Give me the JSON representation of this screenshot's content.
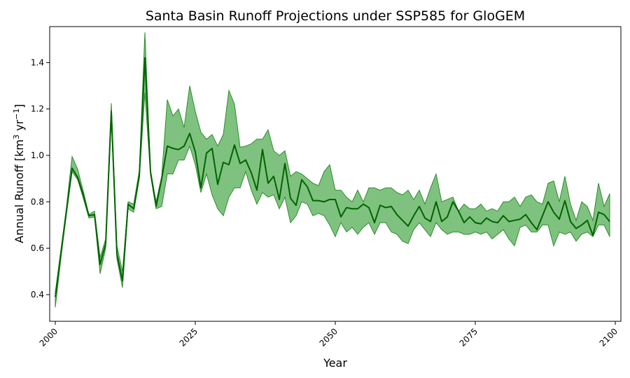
{
  "chart_data": {
    "type": "area",
    "title": "Santa Basin Runoff Projections under SSP585 for GloGEM",
    "xlabel": "Year",
    "ylabel": "Annual Runoff [km",
    "ylabel_sup1": "3",
    "ylabel_mid": " yr",
    "ylabel_sup2": "−1",
    "ylabel_end": "]",
    "xlim": [
      1999,
      2101
    ],
    "ylim": [
      0.285,
      1.555
    ],
    "xticks": [
      2000,
      2025,
      2050,
      2075,
      2100
    ],
    "yticks": [
      0.4,
      0.6,
      0.8,
      1.0,
      1.2,
      1.4
    ],
    "grid": false,
    "colors": {
      "line": "#006400",
      "band_fill": "#4daa4d",
      "band_edge": "#2e8b2e"
    },
    "x": [
      2000,
      2001,
      2002,
      2003,
      2004,
      2005,
      2006,
      2007,
      2008,
      2009,
      2010,
      2011,
      2012,
      2013,
      2014,
      2015,
      2016,
      2017,
      2018,
      2019,
      2020,
      2021,
      2022,
      2023,
      2024,
      2025,
      2026,
      2027,
      2028,
      2029,
      2030,
      2031,
      2032,
      2033,
      2034,
      2035,
      2036,
      2037,
      2038,
      2039,
      2040,
      2041,
      2042,
      2043,
      2044,
      2045,
      2046,
      2047,
      2048,
      2049,
      2050,
      2051,
      2052,
      2053,
      2054,
      2055,
      2056,
      2057,
      2058,
      2059,
      2060,
      2061,
      2062,
      2063,
      2064,
      2065,
      2066,
      2067,
      2068,
      2069,
      2070,
      2071,
      2072,
      2073,
      2074,
      2075,
      2076,
      2077,
      2078,
      2079,
      2080,
      2081,
      2082,
      2083,
      2084,
      2085,
      2086,
      2087,
      2088,
      2089,
      2090,
      2091,
      2092,
      2093,
      2094,
      2095,
      2096,
      2097,
      2098,
      2099
    ],
    "series": [
      {
        "role": "mean",
        "values": [
          0.39,
          0.58,
          0.76,
          0.945,
          0.905,
          0.83,
          0.74,
          0.745,
          0.53,
          0.62,
          1.19,
          0.575,
          0.46,
          0.79,
          0.77,
          0.91,
          1.42,
          0.93,
          0.78,
          0.9,
          1.04,
          1.03,
          1.025,
          1.04,
          1.095,
          1.015,
          0.86,
          1.01,
          1.03,
          0.875,
          0.97,
          0.96,
          1.045,
          0.965,
          0.98,
          0.925,
          0.85,
          1.025,
          0.88,
          0.91,
          0.81,
          0.965,
          0.815,
          0.785,
          0.895,
          0.865,
          0.805,
          0.805,
          0.8,
          0.81,
          0.81,
          0.735,
          0.775,
          0.77,
          0.77,
          0.79,
          0.775,
          0.71,
          0.785,
          0.775,
          0.78,
          0.745,
          0.72,
          0.695,
          0.74,
          0.78,
          0.73,
          0.715,
          0.8,
          0.715,
          0.735,
          0.8,
          0.76,
          0.71,
          0.735,
          0.71,
          0.705,
          0.73,
          0.715,
          0.71,
          0.74,
          0.715,
          0.72,
          0.725,
          0.745,
          0.71,
          0.68,
          0.74,
          0.8,
          0.755,
          0.725,
          0.805,
          0.715,
          0.685,
          0.7,
          0.72,
          0.655,
          0.755,
          0.745,
          0.715
        ]
      },
      {
        "role": "upper",
        "values": [
          0.41,
          0.59,
          0.78,
          0.995,
          0.94,
          0.845,
          0.745,
          0.76,
          0.56,
          0.64,
          1.225,
          0.61,
          0.5,
          0.8,
          0.79,
          0.935,
          1.53,
          0.935,
          0.8,
          0.91,
          1.24,
          1.17,
          1.2,
          1.12,
          1.3,
          1.19,
          1.1,
          1.07,
          1.09,
          1.04,
          1.09,
          1.28,
          1.22,
          1.035,
          1.04,
          1.05,
          1.07,
          1.07,
          1.11,
          1.02,
          1.0,
          1.02,
          0.91,
          0.93,
          0.92,
          0.9,
          0.88,
          0.87,
          0.93,
          0.96,
          0.85,
          0.85,
          0.82,
          0.8,
          0.85,
          0.8,
          0.86,
          0.86,
          0.85,
          0.86,
          0.86,
          0.84,
          0.83,
          0.85,
          0.81,
          0.85,
          0.79,
          0.86,
          0.92,
          0.8,
          0.81,
          0.82,
          0.76,
          0.79,
          0.77,
          0.77,
          0.79,
          0.76,
          0.77,
          0.76,
          0.8,
          0.8,
          0.82,
          0.78,
          0.82,
          0.83,
          0.8,
          0.79,
          0.88,
          0.89,
          0.8,
          0.91,
          0.79,
          0.72,
          0.8,
          0.78,
          0.72,
          0.88,
          0.78,
          0.835
        ]
      },
      {
        "role": "lower",
        "values": [
          0.345,
          0.555,
          0.75,
          0.93,
          0.895,
          0.815,
          0.73,
          0.735,
          0.49,
          0.6,
          1.16,
          0.555,
          0.43,
          0.77,
          0.755,
          0.9,
          1.27,
          0.915,
          0.77,
          0.78,
          0.92,
          0.92,
          0.98,
          0.98,
          1.04,
          0.96,
          0.84,
          0.92,
          0.83,
          0.77,
          0.74,
          0.82,
          0.86,
          0.86,
          0.93,
          0.85,
          0.79,
          0.84,
          0.82,
          0.83,
          0.77,
          0.82,
          0.71,
          0.74,
          0.8,
          0.79,
          0.74,
          0.75,
          0.74,
          0.7,
          0.65,
          0.71,
          0.67,
          0.69,
          0.66,
          0.69,
          0.71,
          0.66,
          0.71,
          0.71,
          0.67,
          0.66,
          0.63,
          0.62,
          0.68,
          0.71,
          0.68,
          0.65,
          0.71,
          0.68,
          0.66,
          0.67,
          0.67,
          0.66,
          0.66,
          0.67,
          0.66,
          0.67,
          0.64,
          0.66,
          0.68,
          0.64,
          0.61,
          0.69,
          0.7,
          0.67,
          0.67,
          0.7,
          0.7,
          0.61,
          0.67,
          0.66,
          0.67,
          0.63,
          0.66,
          0.67,
          0.65,
          0.7,
          0.7,
          0.65
        ]
      }
    ]
  }
}
